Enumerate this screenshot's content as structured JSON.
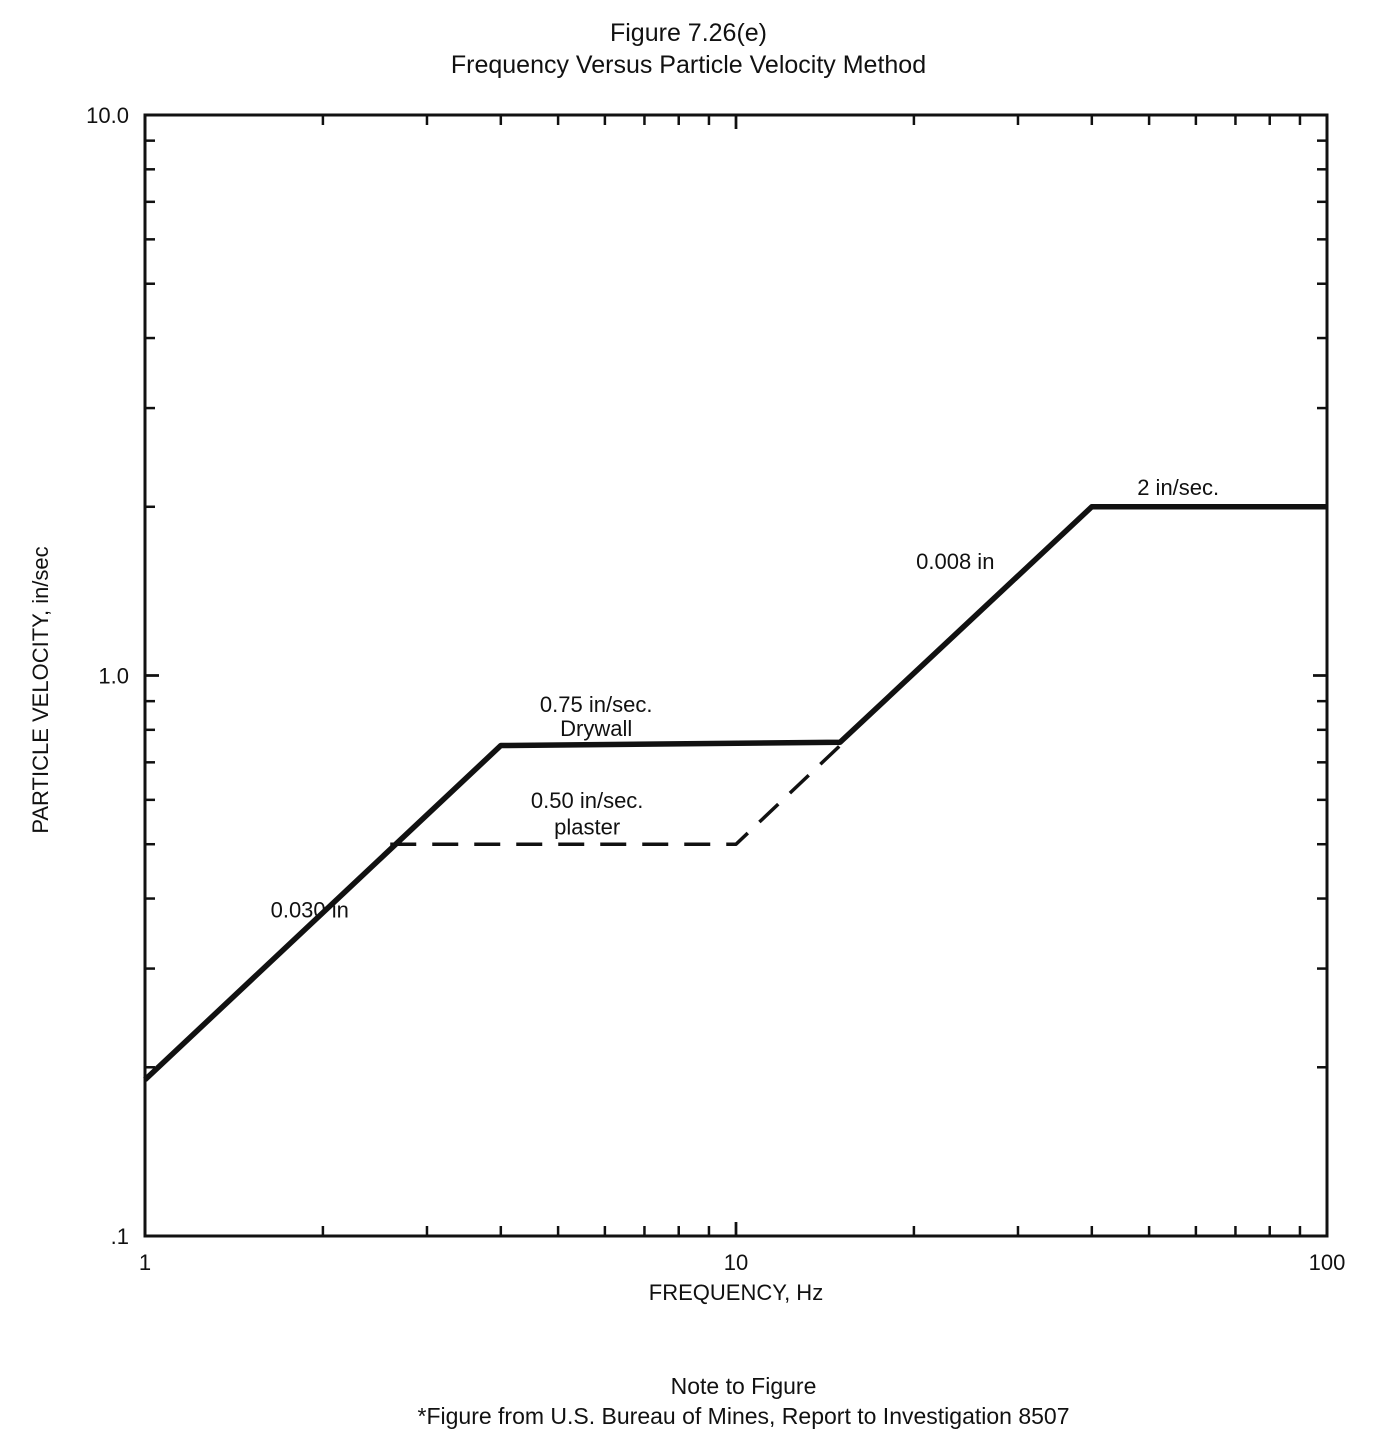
{
  "figure": {
    "title": "Figure 7.26(e)",
    "subtitle": "Frequency Versus Particle Velocity Method"
  },
  "chart_data": {
    "type": "line",
    "xscale": "log",
    "yscale": "log",
    "xlim": [
      1,
      100
    ],
    "ylim": [
      0.1,
      10.0
    ],
    "xlabel": "FREQUENCY, Hz",
    "ylabel": "PARTICLE VELOCITY, in/sec",
    "x_tick_labels": [
      {
        "value": 1,
        "label": "1"
      },
      {
        "value": 10,
        "label": "10"
      },
      {
        "value": 100,
        "label": "100"
      }
    ],
    "y_tick_labels": [
      {
        "value": 0.1,
        "label": ".1"
      },
      {
        "value": 1.0,
        "label": "1.0"
      },
      {
        "value": 10.0,
        "label": "10.0"
      }
    ],
    "grid": false,
    "series": [
      {
        "name": "Drywall limit",
        "style": "solid",
        "color": "#111111",
        "x": [
          1,
          4,
          15,
          40,
          100
        ],
        "y": [
          0.19,
          0.75,
          0.76,
          2.0,
          2.0
        ]
      },
      {
        "name": "Plaster limit",
        "style": "dashed",
        "color": "#111111",
        "x": [
          2.6,
          10,
          15
        ],
        "y": [
          0.5,
          0.5,
          0.75
        ]
      }
    ],
    "annotations": [
      {
        "text": "0.030 in",
        "x": 1.9,
        "y": 0.37
      },
      {
        "text": "0.75 in/sec.",
        "x": 5.8,
        "y": 0.86
      },
      {
        "text": "Drywall",
        "x": 5.8,
        "y": 0.78
      },
      {
        "text": "0.50 in/sec.",
        "x": 5.6,
        "y": 0.58
      },
      {
        "text": "plaster",
        "x": 5.6,
        "y": 0.52
      },
      {
        "text": "0.008 in",
        "x": 23.5,
        "y": 1.55
      },
      {
        "text": "2 in/sec.",
        "x": 56.0,
        "y": 2.1
      }
    ]
  },
  "note": {
    "title": "Note to Figure",
    "text": "*Figure from U.S. Bureau of Mines, Report to Investigation 8507"
  }
}
